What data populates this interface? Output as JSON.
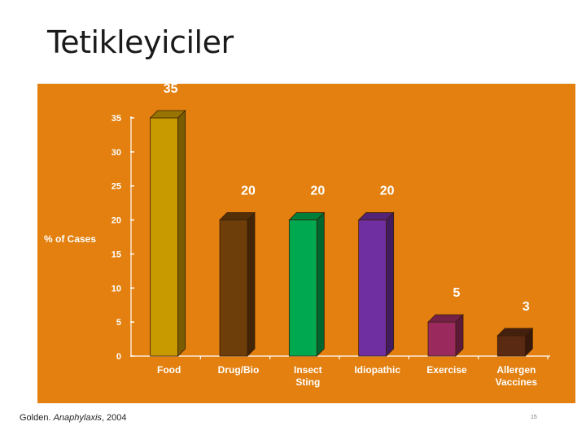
{
  "slide": {
    "title": "Tetikleyiciler",
    "citation_author": "Golden. ",
    "citation_journal": "Anaphylaxis",
    "citation_year": ", 2004",
    "page_number": "15"
  },
  "chart_data": {
    "type": "bar",
    "ylabel": "% of Cases",
    "ylim": [
      0,
      35
    ],
    "yticks": [
      0,
      5,
      10,
      15,
      20,
      25,
      30,
      35
    ],
    "categories": [
      [
        "Food"
      ],
      [
        "Drug/Bio"
      ],
      [
        "Insect",
        "Sting"
      ],
      [
        "Idiopathic"
      ],
      [
        "Exercise"
      ],
      [
        "Allergen",
        "Vaccines"
      ]
    ],
    "values": [
      35,
      20,
      20,
      20,
      5,
      3
    ],
    "data_labels": [
      "35",
      "20",
      "20",
      "20",
      "5",
      "3"
    ],
    "colors": {
      "background": "#E3800F",
      "bars": [
        "#C99A00",
        "#6E3E0A",
        "#00A94F",
        "#6F2FA0",
        "#9A2A5E",
        "#5A2A12"
      ],
      "axis_text": "#FFFFFF"
    },
    "grid": false
  }
}
